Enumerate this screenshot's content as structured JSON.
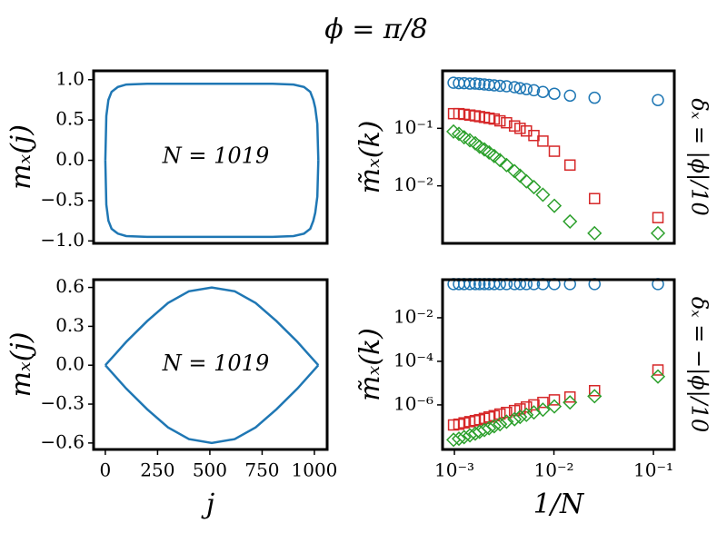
{
  "title": "ϕ = π/8",
  "chart_data": [
    {
      "type": "line",
      "ylabel": "mₓ(j)",
      "annotation": "N = 1019",
      "xlim": [
        -56,
        1061
      ],
      "ylim": [
        -1.03,
        1.11
      ],
      "yticks": [
        {
          "value": -1.0,
          "label": "−1.0"
        },
        {
          "value": -0.5,
          "label": "−0.5"
        },
        {
          "value": 0.0,
          "label": "0.0"
        },
        {
          "value": 0.5,
          "label": "0.5"
        },
        {
          "value": 1.0,
          "label": "1.0"
        }
      ],
      "x": [
        0,
        5,
        15,
        30,
        60,
        100,
        200,
        300,
        400,
        509,
        600,
        700,
        800,
        900,
        950,
        980,
        995,
        1004,
        1014,
        1019
      ],
      "series": [
        {
          "color": "#1f77b4",
          "values": [
            0,
            0.55,
            0.75,
            0.85,
            0.91,
            0.94,
            0.95,
            0.95,
            0.95,
            0.95,
            0.95,
            0.95,
            0.95,
            0.94,
            0.91,
            0.85,
            0.75,
            0.65,
            0.45,
            0
          ]
        },
        {
          "color": "#1f77b4",
          "values": [
            0,
            -0.55,
            -0.75,
            -0.85,
            -0.91,
            -0.94,
            -0.95,
            -0.95,
            -0.95,
            -0.95,
            -0.95,
            -0.95,
            -0.95,
            -0.94,
            -0.91,
            -0.85,
            -0.75,
            -0.65,
            -0.45,
            0
          ]
        }
      ]
    },
    {
      "type": "scatter",
      "ylabel": "m̃ₓ(k)",
      "side_label": "δₓ = |ϕ|/10",
      "log": true,
      "xlim": [
        0.00076,
        0.162
      ],
      "ylim": [
        0.001,
        1.0
      ],
      "yticks": [
        {
          "value": 0.1,
          "label": "10⁻¹"
        },
        {
          "value": 0.01,
          "label": "10⁻²"
        }
      ],
      "x": [
        0.111,
        0.0256,
        0.0145,
        0.0101,
        0.00775,
        0.00629,
        0.00529,
        0.00457,
        0.00402,
        0.00334,
        0.00287,
        0.00251,
        0.00223,
        0.002,
        0.00179,
        0.00162,
        0.00143,
        0.00125,
        0.00111,
        0.00098
      ],
      "series": [
        {
          "color": "#1f77b4",
          "marker": "circle",
          "values": [
            0.31,
            0.34,
            0.37,
            0.4,
            0.43,
            0.46,
            0.48,
            0.5,
            0.52,
            0.54,
            0.55,
            0.56,
            0.57,
            0.58,
            0.59,
            0.6,
            0.6,
            0.61,
            0.61,
            0.62
          ]
        },
        {
          "color": "#d62728",
          "marker": "square",
          "values": [
            0.0028,
            0.006,
            0.023,
            0.04,
            0.06,
            0.075,
            0.09,
            0.1,
            0.11,
            0.125,
            0.135,
            0.145,
            0.15,
            0.155,
            0.16,
            0.165,
            0.17,
            0.175,
            0.18,
            0.18
          ]
        },
        {
          "color": "#2ca02c",
          "marker": "diamond",
          "values": [
            0.0015,
            0.0015,
            0.0024,
            0.0045,
            0.007,
            0.0095,
            0.012,
            0.015,
            0.018,
            0.023,
            0.028,
            0.033,
            0.038,
            0.043,
            0.048,
            0.055,
            0.062,
            0.07,
            0.08,
            0.088
          ]
        }
      ]
    },
    {
      "type": "line",
      "ylabel": "mₓ(j)",
      "xlabel": "j",
      "annotation": "N = 1019",
      "xlim": [
        -56,
        1061
      ],
      "ylim": [
        -0.65,
        0.66
      ],
      "xticks": [
        0,
        250,
        500,
        750,
        1000
      ],
      "yticks": [
        {
          "value": -0.6,
          "label": "−0.6"
        },
        {
          "value": -0.3,
          "label": "−0.3"
        },
        {
          "value": 0.0,
          "label": "0.0"
        },
        {
          "value": 0.3,
          "label": "0.3"
        },
        {
          "value": 0.6,
          "label": "0.6"
        }
      ],
      "x": [
        0,
        50,
        100,
        200,
        300,
        400,
        509,
        619,
        719,
        819,
        919,
        969,
        1019
      ],
      "series": [
        {
          "color": "#1f77b4",
          "values": [
            0,
            0.09,
            0.18,
            0.34,
            0.48,
            0.57,
            0.6,
            0.57,
            0.48,
            0.34,
            0.18,
            0.09,
            0
          ]
        },
        {
          "color": "#1f77b4",
          "values": [
            0,
            -0.09,
            -0.18,
            -0.34,
            -0.48,
            -0.57,
            -0.6,
            -0.57,
            -0.48,
            -0.34,
            -0.18,
            -0.09,
            0
          ]
        }
      ]
    },
    {
      "type": "scatter",
      "ylabel": "m̃ₓ(k)",
      "xlabel": "1/N",
      "side_label": "δₓ = −|ϕ|/10",
      "log": true,
      "xlim": [
        0.00076,
        0.162
      ],
      "ylim": [
        9e-09,
        0.56
      ],
      "xticks": [
        {
          "value": 0.001,
          "label": "10⁻³"
        },
        {
          "value": 0.01,
          "label": "10⁻²"
        },
        {
          "value": 0.1,
          "label": "10⁻¹"
        }
      ],
      "yticks": [
        {
          "value": 0.01,
          "label": "10⁻²"
        },
        {
          "value": 0.0001,
          "label": "10⁻⁴"
        },
        {
          "value": 1e-06,
          "label": "10⁻⁶"
        }
      ],
      "x": [
        0.111,
        0.0256,
        0.0145,
        0.0101,
        0.00775,
        0.00629,
        0.00529,
        0.00457,
        0.00402,
        0.00334,
        0.00287,
        0.00251,
        0.00223,
        0.002,
        0.00179,
        0.00162,
        0.00143,
        0.00125,
        0.00111,
        0.00098
      ],
      "series": [
        {
          "color": "#1f77b4",
          "marker": "circle",
          "values": [
            0.35,
            0.35,
            0.35,
            0.35,
            0.35,
            0.35,
            0.35,
            0.35,
            0.35,
            0.35,
            0.35,
            0.35,
            0.35,
            0.35,
            0.35,
            0.35,
            0.35,
            0.35,
            0.35,
            0.35
          ]
        },
        {
          "color": "#d62728",
          "marker": "square",
          "values": [
            4e-05,
            4.5e-06,
            2.3e-06,
            1.7e-06,
            1.3e-06,
            1e-06,
            8e-07,
            6.5e-07,
            5.5e-07,
            4.5e-07,
            3.8e-07,
            3.2e-07,
            2.8e-07,
            2.4e-07,
            2.1e-07,
            1.9e-07,
            1.7e-07,
            1.5e-07,
            1.3e-07,
            1.2e-07
          ]
        },
        {
          "color": "#2ca02c",
          "marker": "diamond",
          "values": [
            2e-05,
            2.5e-06,
            1.3e-06,
            8.5e-07,
            6e-07,
            4.5e-07,
            3.5e-07,
            2.8e-07,
            2.2e-07,
            1.7e-07,
            1.3e-07,
            1.05e-07,
            8.5e-08,
            7e-08,
            5.8e-08,
            4.8e-08,
            4e-08,
            3.3e-08,
            2.8e-08,
            2.5e-08
          ]
        }
      ]
    }
  ]
}
